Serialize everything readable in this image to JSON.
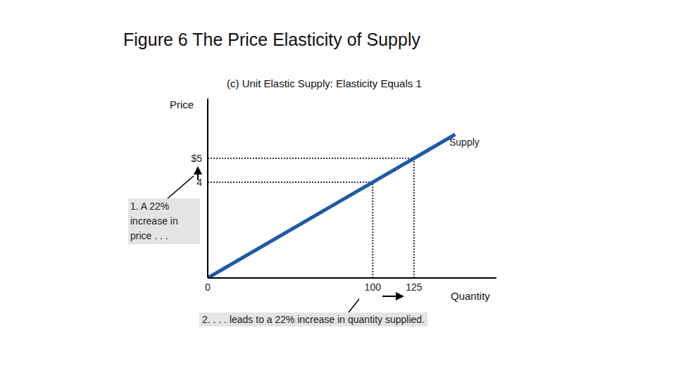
{
  "chart_data": {
    "type": "line",
    "title": "Figure 6 The Price Elasticity of Supply",
    "subtitle": "(c) Unit Elastic Supply: Elasticity Equals 1",
    "x_label": "Quantity",
    "y_label": "Price",
    "x": [
      0,
      100,
      125,
      150
    ],
    "series": [
      {
        "name": "Supply",
        "color": "#1f5aa6",
        "values": [
          0,
          4,
          5,
          6
        ]
      }
    ],
    "xlim": [
      0,
      175
    ],
    "ylim": [
      0,
      7.5
    ],
    "xticks": [
      0,
      100,
      125
    ],
    "yticks": [
      4,
      {
        "value": 5,
        "label": "$5"
      }
    ],
    "guides": [
      {
        "x": 100,
        "y": 4
      },
      {
        "x": 125,
        "y": 5
      }
    ],
    "annotations": [
      "1. A 22% increase in price . . .",
      "2. . . . leads to a 22% increase in quantity supplied."
    ],
    "grid": false
  }
}
